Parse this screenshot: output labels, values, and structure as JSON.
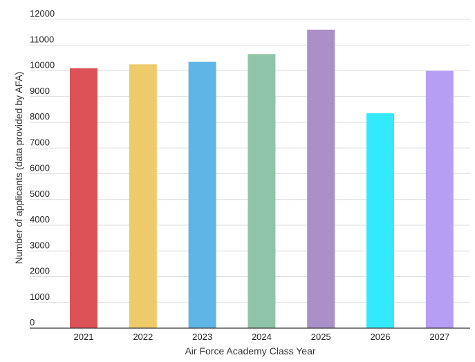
{
  "chart_data": {
    "type": "bar",
    "title": "",
    "xlabel": "Air Force Academy Class Year",
    "ylabel": "Number of applicants (data provided by AFA)",
    "ylim": [
      0,
      12000
    ],
    "yticks": [
      0,
      1000,
      2000,
      3000,
      4000,
      5000,
      6000,
      7000,
      8000,
      9000,
      10000,
      11000,
      12000
    ],
    "categories": [
      "2021",
      "2022",
      "2023",
      "2024",
      "2025",
      "2026",
      "2027"
    ],
    "values": [
      10100,
      10250,
      10350,
      10650,
      11600,
      8350,
      10000
    ],
    "colors": [
      "#dc5257",
      "#edcb6b",
      "#5fb5e5",
      "#8fc4a8",
      "#ab8fc8",
      "#33e9fe",
      "#b79ef5"
    ],
    "grid": true,
    "legend": "none"
  }
}
